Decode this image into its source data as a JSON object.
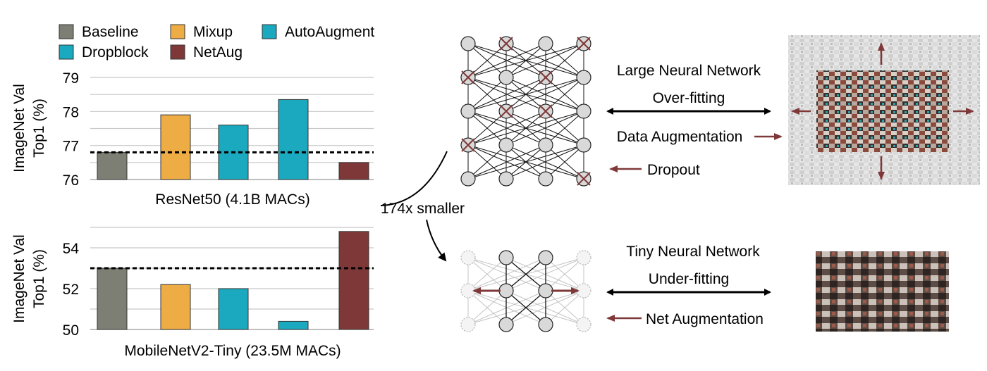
{
  "legend": [
    {
      "label": "Baseline",
      "color": "#7d7f74"
    },
    {
      "label": "Mixup",
      "color": "#eeac45"
    },
    {
      "label": "AutoAugment",
      "color": "#1aa9be"
    },
    {
      "label": "Dropblock",
      "color": "#1aa9be"
    },
    {
      "label": "NetAug",
      "color": "#7f3838"
    }
  ],
  "chart_data": [
    {
      "type": "bar",
      "xlabel": "ResNet50 (4.1B MACs)",
      "ylabel": [
        "ImageNet Val",
        "Top1 (%)"
      ],
      "ylim": [
        76,
        79
      ],
      "yticks": [
        "79",
        "78",
        "77",
        "76"
      ],
      "categories": [
        "Baseline",
        "Mixup",
        "Dropblock",
        "AutoAugment",
        "NetAug"
      ],
      "values": [
        76.8,
        77.9,
        77.6,
        78.35,
        76.5
      ],
      "colors": [
        "#7d7f74",
        "#eeac45",
        "#1aa9be",
        "#1aa9be",
        "#7f3838"
      ],
      "baseline_reference": 76.8,
      "grid": "horizontal"
    },
    {
      "type": "bar",
      "xlabel": "MobileNetV2-Tiny (23.5M MACs)",
      "ylabel": [
        "ImageNet Val",
        "Top1 (%)"
      ],
      "ylim": [
        50,
        55
      ],
      "yticks": [
        "54",
        "52",
        "50"
      ],
      "categories": [
        "Baseline",
        "Mixup",
        "Dropblock",
        "AutoAugment",
        "NetAug"
      ],
      "values": [
        53.0,
        52.2,
        52.0,
        50.4,
        54.8
      ],
      "colors": [
        "#7d7f74",
        "#eeac45",
        "#1aa9be",
        "#1aa9be",
        "#7f3838"
      ],
      "baseline_reference": 53.0,
      "grid": "horizontal"
    }
  ],
  "diagram": {
    "scale_label": "174x smaller",
    "large": {
      "title": "Large Neural Network",
      "relation": "Over-fitting",
      "aug1": "Data Augmentation",
      "aug2": "Dropout"
    },
    "tiny": {
      "title": "Tiny Neural Network",
      "relation": "Under-fitting",
      "aug": "Net Augmentation"
    },
    "colors": {
      "arrow": "#7f3838",
      "node": "#d9d9d9",
      "cross": "#7f3838"
    }
  }
}
